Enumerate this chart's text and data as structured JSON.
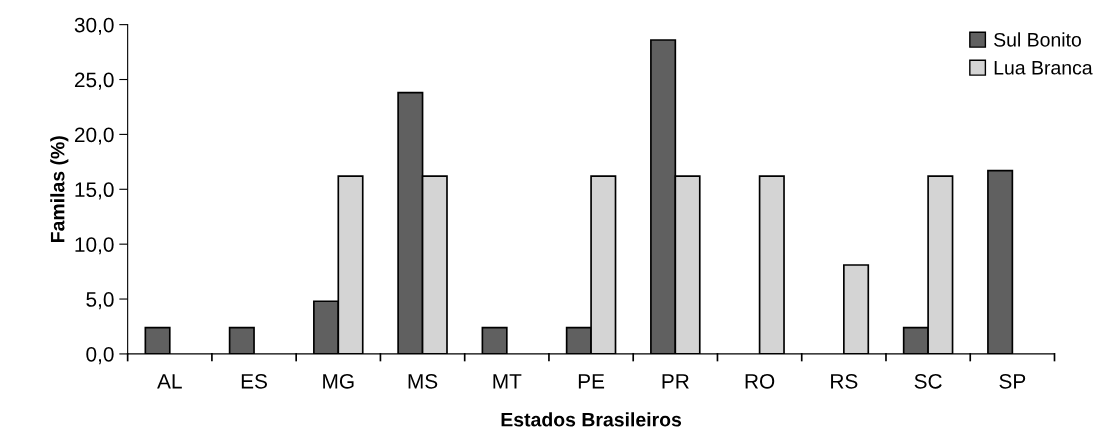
{
  "chart_data": {
    "type": "bar",
    "xlabel": "Estados Brasileiros",
    "ylabel": "Familas (%)",
    "categories": [
      "AL",
      "ES",
      "MG",
      "MS",
      "MT",
      "PE",
      "PR",
      "RO",
      "RS",
      "SC",
      "SP"
    ],
    "series": [
      {
        "name": "Sul Bonito",
        "color": "#606060",
        "values": [
          2.4,
          2.4,
          4.8,
          23.8,
          2.4,
          2.4,
          28.6,
          null,
          null,
          2.4,
          16.7
        ]
      },
      {
        "name": "Lua Branca",
        "color": "#d4d4d4",
        "values": [
          null,
          null,
          16.2,
          16.2,
          null,
          16.2,
          16.2,
          16.2,
          8.1,
          16.2,
          null
        ]
      }
    ],
    "ylim": [
      0,
      30
    ],
    "yticks": [
      {
        "value": 0,
        "label": "0,0"
      },
      {
        "value": 5,
        "label": "5,0"
      },
      {
        "value": 10,
        "label": "10,0"
      },
      {
        "value": 15,
        "label": "15,0"
      },
      {
        "value": 20,
        "label": "20,0"
      },
      {
        "value": 25,
        "label": "25,0"
      },
      {
        "value": 30,
        "label": "30,0"
      }
    ],
    "legend": "top right",
    "grid": false
  }
}
